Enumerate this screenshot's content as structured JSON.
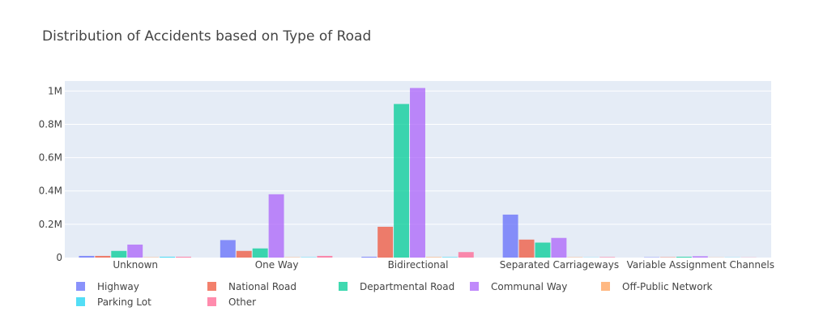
{
  "chart_data": {
    "type": "bar",
    "title": "Distribution of Accidents based on Type of Road",
    "xlabel": "",
    "ylabel": "",
    "categories": [
      "Unknown",
      "One Way",
      "Bidirectional",
      "Separated Carriageways",
      "Variable Assignment Channels"
    ],
    "ylim": [
      0,
      1060000
    ],
    "y_ticks": [
      0,
      200000,
      400000,
      600000,
      800000,
      1000000
    ],
    "y_tick_labels": [
      "0",
      "0.2M",
      "0.4M",
      "0.6M",
      "0.8M",
      "1M"
    ],
    "grid": true,
    "legend_position": "bottom",
    "series": [
      {
        "name": "Highway",
        "color": "#636efa",
        "values": [
          10000,
          105000,
          5000,
          258000,
          2000
        ]
      },
      {
        "name": "National Road",
        "color": "#EF553B",
        "values": [
          10000,
          40000,
          185000,
          108000,
          2000
        ]
      },
      {
        "name": "Departmental Road",
        "color": "#00cc96",
        "values": [
          40000,
          55000,
          922000,
          90000,
          5000
        ]
      },
      {
        "name": "Communal Way",
        "color": "#ab63fa",
        "values": [
          78000,
          380000,
          1018000,
          118000,
          8000
        ]
      },
      {
        "name": "Off-Public Network",
        "color": "#FFA15A",
        "values": [
          2000,
          2000,
          3000,
          2000,
          1000
        ]
      },
      {
        "name": "Parking Lot",
        "color": "#19d3f3",
        "values": [
          5000,
          2000,
          3000,
          1000,
          1000
        ]
      },
      {
        "name": "Other",
        "color": "#FF6692",
        "values": [
          5000,
          10000,
          33000,
          3000,
          1000
        ]
      }
    ]
  }
}
